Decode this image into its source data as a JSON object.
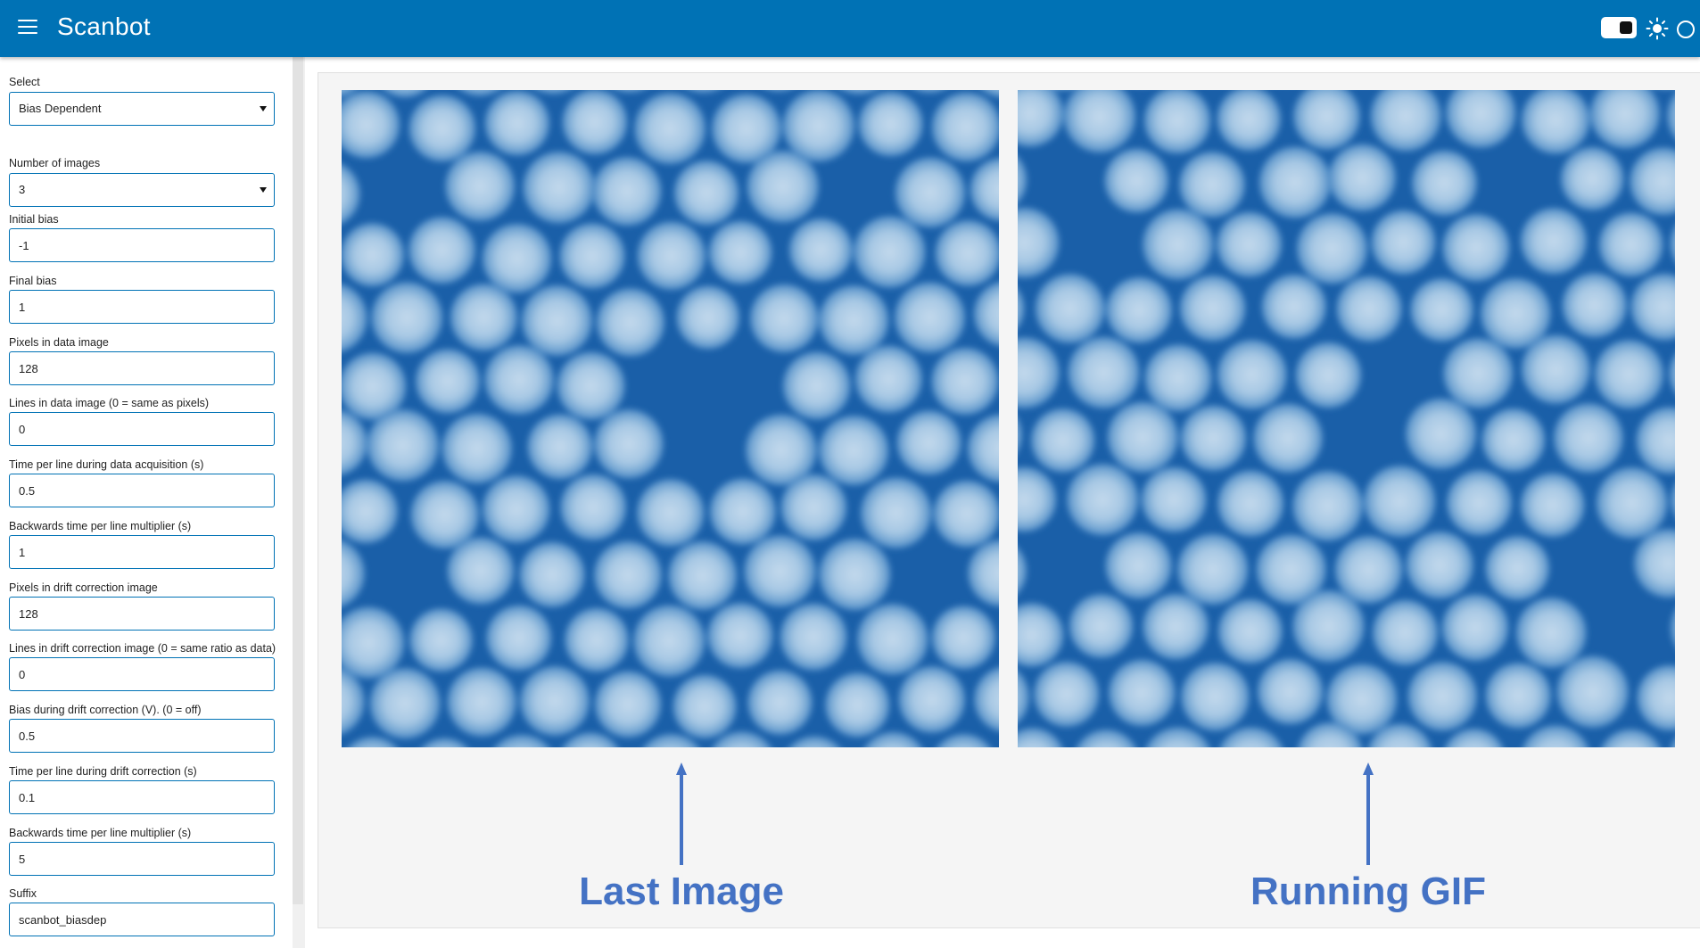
{
  "header": {
    "title": "Scanbot",
    "menu_icon": "hamburger-menu-icon",
    "theme_toggle_icon": "toggle-icon",
    "light_theme_icon": "sun-icon",
    "status_icon": "circle-icon",
    "background_color": "#0072b5"
  },
  "sidebar": {
    "select": {
      "label": "Select",
      "value": "Bias Dependent"
    },
    "num_images": {
      "label": "Number of images",
      "value": "3"
    },
    "initial_bias": {
      "label": "Initial bias",
      "value": "-1"
    },
    "final_bias": {
      "label": "Final bias",
      "value": "1"
    },
    "pixels_data": {
      "label": "Pixels in data image",
      "value": "128"
    },
    "lines_data": {
      "label": "Lines in data image (0 = same as pixels)",
      "value": "0"
    },
    "time_per_line_data": {
      "label": "Time per line during data acquisition (s)",
      "value": "0.5"
    },
    "backwards_multiplier_data": {
      "label": "Backwards time per line multiplier (s)",
      "value": "1"
    },
    "pixels_drift": {
      "label": "Pixels in drift correction image",
      "value": "128"
    },
    "lines_drift": {
      "label": "Lines in drift correction image (0 = same ratio as data)",
      "value": "0"
    },
    "bias_drift": {
      "label": "Bias during drift correction (V). (0 = off)",
      "value": "0.5"
    },
    "time_per_line_drift": {
      "label": "Time per line during drift correction (s)",
      "value": "0.1"
    },
    "backwards_multiplier_drift": {
      "label": "Backwards time per line multiplier (s)",
      "value": "5"
    },
    "suffix": {
      "label": "Suffix",
      "value": "scanbot_biasdep"
    }
  },
  "main": {
    "last_image_caption": "Last Image",
    "running_gif_caption": "Running GIF",
    "annotation_color": "#4472c4"
  }
}
